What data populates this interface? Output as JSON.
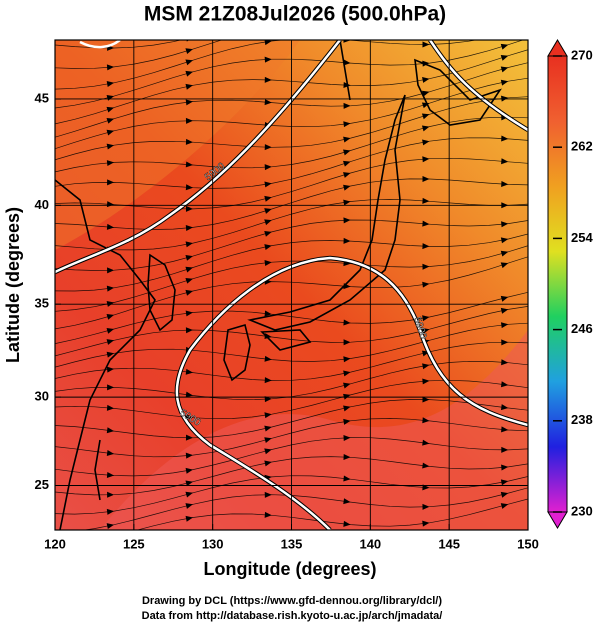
{
  "map": {
    "title": "MSM 21Z08Jul2026 (500.0hPa)",
    "xlabel": "Longitude (degrees)",
    "ylabel": "Latitude  (degrees)",
    "xlim": [
      120,
      150
    ],
    "ylim": [
      22.4,
      47.6
    ],
    "xticks": [
      120,
      125,
      130,
      135,
      140,
      145,
      150
    ],
    "yticks": [
      25,
      30,
      35,
      40,
      45
    ],
    "projection": "mercator",
    "grid": true,
    "contour_labels": [
      5900,
      5900,
      5900
    ],
    "colorbar": {
      "lim": [
        230,
        270
      ],
      "ticks": [
        230,
        238,
        246,
        254,
        262,
        270
      ],
      "colors": [
        "#e020d0",
        "#2020e0",
        "#20a0e0",
        "#20d060",
        "#e0e020",
        "#f0a020",
        "#f06030",
        "#e83020"
      ]
    },
    "footer": [
      "Drawing by DCL (https://www.gfd-dennou.org/library/dcl/)",
      "Data from http://database.rish.kyoto-u.ac.jp/arch/jmadata/"
    ]
  }
}
